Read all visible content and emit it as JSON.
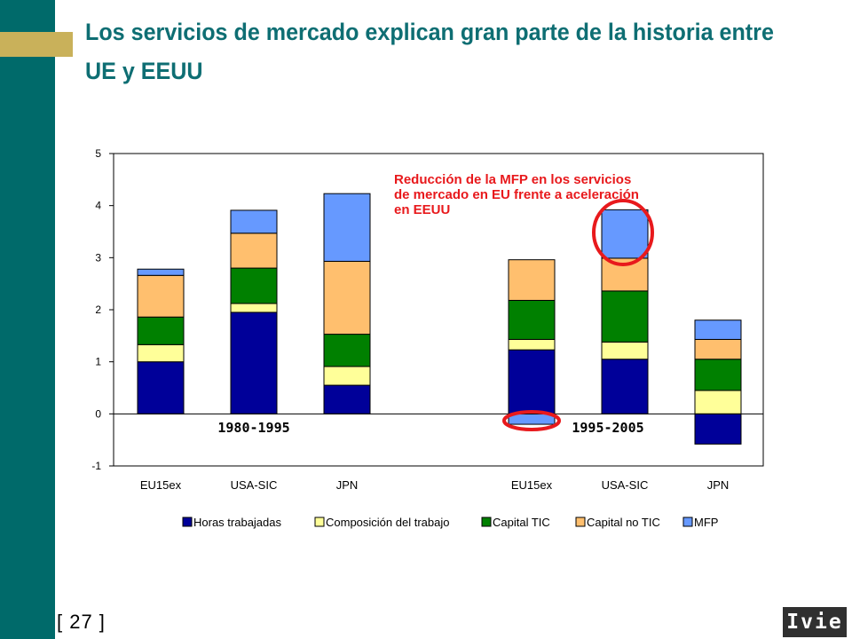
{
  "slide": {
    "title": "Los servicios de mercado explican gran parte de la historia entre UE y EEUU",
    "page_number": "[ 27 ]",
    "logo_text": "Ivie",
    "annotation": "Reducción de la MFP en los servicios de mercado en EU frente a aceleración en EEUU",
    "annotation_lines": [
      "Reducción de la MFP en los servicios",
      "de mercado en EU frente a aceleración",
      "en EEUU"
    ],
    "annotation_color": "#e8191c"
  },
  "chart_data": {
    "type": "bar",
    "stacked": true,
    "categories": [
      "EU15ex",
      "USA-SIC",
      "JPN",
      "EU15ex",
      "USA-SIC",
      "JPN"
    ],
    "period_labels": [
      "1980-1995",
      "1995-2005"
    ],
    "ylim": [
      -1,
      5
    ],
    "yticks": [
      -1,
      0,
      1,
      2,
      3,
      4,
      5
    ],
    "grid": false,
    "legend_position": "bottom",
    "series": [
      {
        "name": "Horas trabajadas",
        "color": "#000099",
        "values": [
          1.0,
          1.95,
          0.55,
          1.23,
          1.05,
          -0.58
        ]
      },
      {
        "name": "Composición del trabajo",
        "color": "#ffff99",
        "values": [
          0.33,
          0.17,
          0.36,
          0.2,
          0.33,
          0.45
        ]
      },
      {
        "name": "Capital TIC",
        "color": "#008000",
        "values": [
          0.53,
          0.68,
          0.62,
          0.75,
          0.98,
          0.6
        ]
      },
      {
        "name": "Capital no TIC",
        "color": "#ffbf6e",
        "values": [
          0.8,
          0.67,
          1.4,
          0.78,
          0.63,
          0.38
        ]
      },
      {
        "name": "MFP",
        "color": "#6699ff",
        "values": [
          0.12,
          0.44,
          1.3,
          -0.2,
          0.93,
          0.37
        ]
      }
    ]
  }
}
